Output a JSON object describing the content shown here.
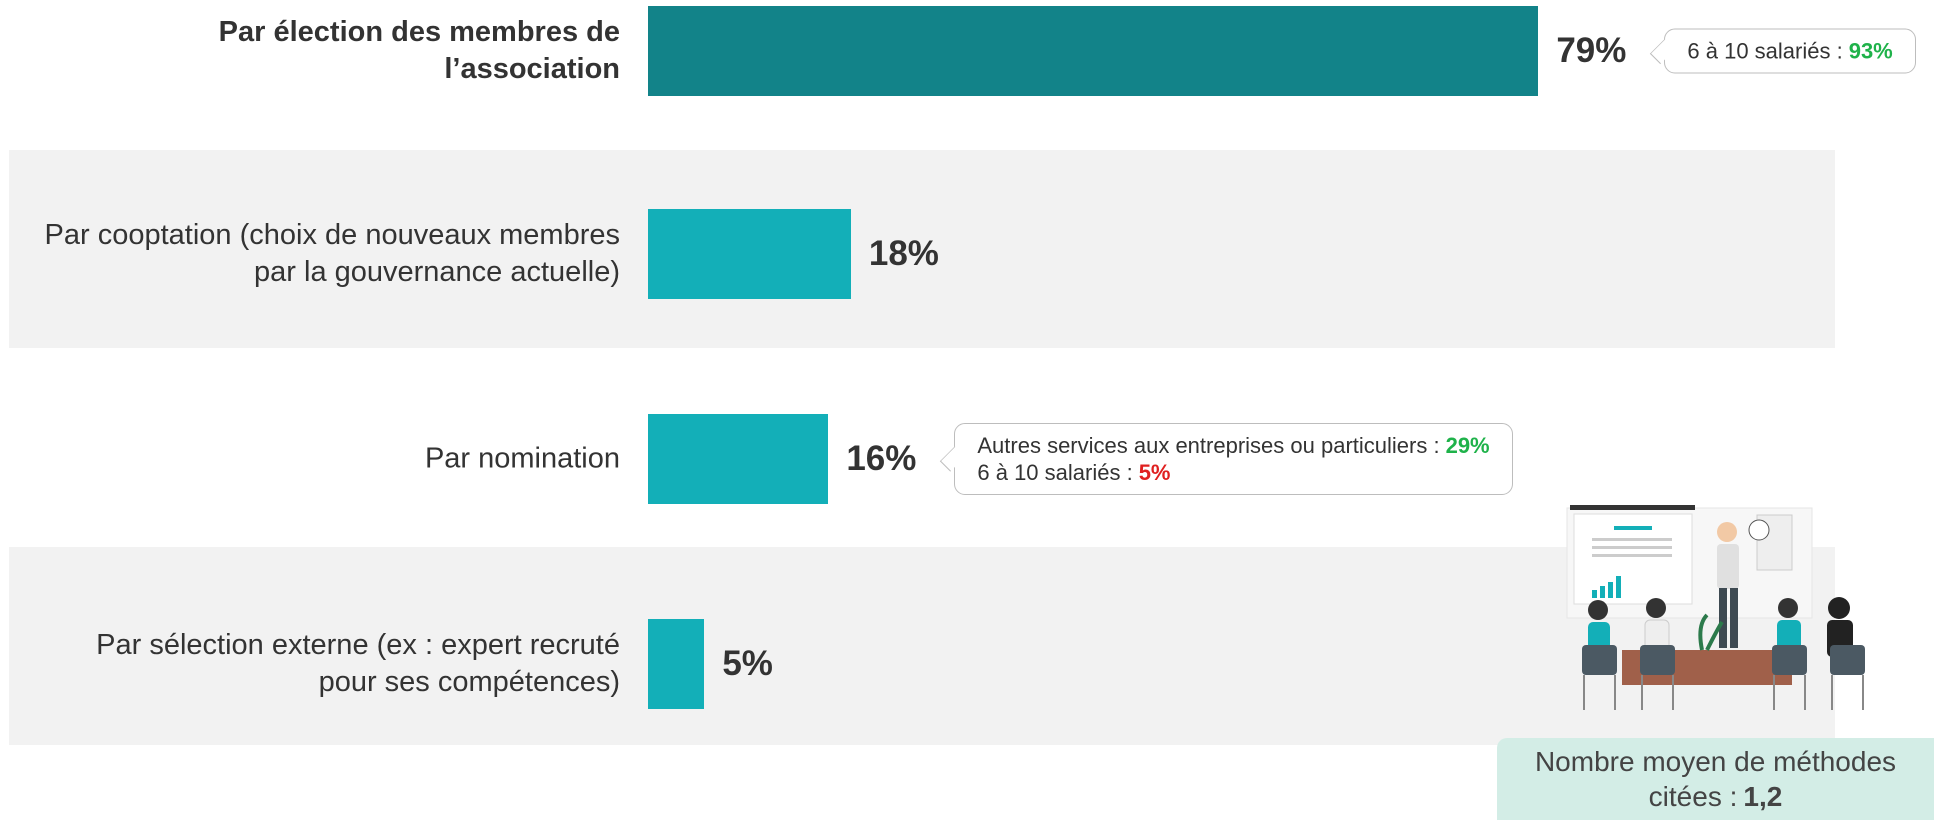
{
  "chart_data": {
    "type": "hbar",
    "categories": [
      "Par élection des membres de l’association",
      "Par cooptation (choix de nouveaux membres par la gouvernance actuelle)",
      "Par nomination",
      "Par sélection externe (ex : expert recruté pour ses compétences)"
    ],
    "values": [
      79,
      18,
      16,
      5
    ],
    "value_labels": [
      "79%",
      "18%",
      "16%",
      "5%"
    ],
    "colors": [
      "#128389",
      "#13afb8",
      "#13afb8",
      "#13afb8"
    ],
    "bold_categories": [
      0
    ],
    "callouts": [
      [
        {
          "label": "6 à 10 salariés :",
          "value": "93%",
          "color": "#1fb24a"
        }
      ],
      null,
      [
        {
          "label": "Autres services aux entreprises ou particuliers :",
          "value": "29%",
          "color": "#1fb24a"
        },
        {
          "label": "6 à 10 salariés :",
          "value": "5%",
          "color": "#e02020"
        }
      ],
      null
    ],
    "note": {
      "label": "Nombre moyen de méthodes citées :",
      "value": "1,2"
    }
  }
}
